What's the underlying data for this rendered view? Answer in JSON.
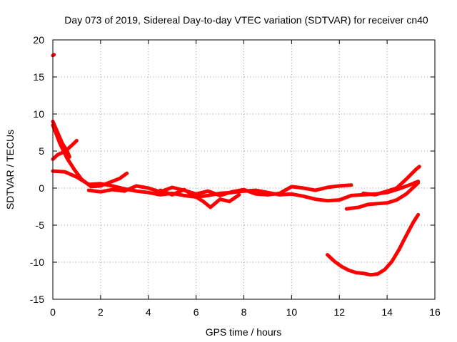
{
  "chart_data": {
    "type": "scatter",
    "title": "Day 073 of 2019, Sidereal Day-to-day VTEC variation (SDTVAR) for receiver cn40",
    "xlabel": "GPS time / hours",
    "ylabel": "SDTVAR / TECUs",
    "xlim": [
      0,
      16
    ],
    "ylim": [
      -15,
      20
    ],
    "xticks": [
      0,
      2,
      4,
      6,
      8,
      10,
      12,
      14,
      16
    ],
    "yticks": [
      -15,
      -10,
      -5,
      0,
      5,
      10,
      15,
      20
    ],
    "xtick_labels": [
      "0",
      "2",
      "4",
      "6",
      "8",
      "10",
      "12",
      "14",
      "16"
    ],
    "ytick_labels": [
      "-15",
      "-10",
      "-5",
      "0",
      "5",
      "10",
      "15",
      "20"
    ],
    "grid": true,
    "color": "#ff0000",
    "series": [
      {
        "name": "s1",
        "x": [
          0.0,
          0.05
        ],
        "y": [
          17.9,
          18.0
        ]
      },
      {
        "name": "s2",
        "x": [
          0.0,
          0.2,
          0.4,
          0.6,
          0.8,
          1.0
        ],
        "y": [
          3.9,
          4.5,
          4.8,
          5.2,
          5.8,
          6.4
        ]
      },
      {
        "name": "s3",
        "x": [
          0.0,
          0.2,
          0.4,
          0.6,
          0.7
        ],
        "y": [
          9.0,
          7.5,
          6.0,
          5.0,
          4.2
        ]
      },
      {
        "name": "s4",
        "x": [
          0.0,
          0.3,
          0.6,
          0.9,
          1.2,
          1.6,
          2.0,
          2.4,
          2.8,
          3.1
        ],
        "y": [
          8.5,
          6.0,
          4.0,
          2.5,
          1.2,
          0.2,
          0.3,
          0.8,
          1.3,
          2.0
        ]
      },
      {
        "name": "s5",
        "x": [
          0.0,
          0.5,
          1.0,
          1.5,
          2.0,
          2.5,
          3.0,
          3.5,
          4.0,
          4.5,
          5.0,
          5.5,
          6.0,
          6.5,
          7.0,
          7.5,
          8.0,
          8.5,
          9.0,
          9.5,
          10.0,
          10.5,
          11.0,
          11.5,
          12.0,
          12.5,
          13.0,
          13.5,
          14.0,
          14.5,
          15.0,
          15.3
        ],
        "y": [
          2.3,
          2.2,
          1.5,
          0.5,
          0.6,
          0.3,
          -0.1,
          -0.4,
          -0.6,
          -0.9,
          -0.7,
          -1.0,
          -1.2,
          -1.0,
          -0.7,
          -0.6,
          -0.4,
          -0.3,
          -0.6,
          -0.9,
          -0.8,
          -1.1,
          -1.5,
          -1.7,
          -1.6,
          -1.0,
          -0.9,
          -0.8,
          -0.6,
          -0.1,
          0.5,
          0.9
        ]
      },
      {
        "name": "s6",
        "x": [
          1.5,
          2.0,
          2.5,
          3.0,
          3.5,
          4.0,
          4.5,
          5.0,
          5.5,
          6.0,
          6.5,
          7.0,
          7.5,
          8.0,
          8.5,
          9.0,
          9.5,
          10.0,
          10.5,
          11.0,
          11.5,
          12.0,
          12.5
        ],
        "y": [
          -0.3,
          -0.5,
          -0.2,
          -0.4,
          0.3,
          0.0,
          -0.5,
          0.1,
          -0.3,
          -0.8,
          -0.4,
          -1.0,
          -0.5,
          -0.2,
          -0.8,
          -0.9,
          -0.7,
          0.2,
          0.0,
          -0.3,
          0.1,
          0.3,
          0.4
        ]
      },
      {
        "name": "s7",
        "x": [
          4.5,
          5.0,
          5.5,
          6.0,
          6.3,
          6.6,
          7.0,
          7.4,
          7.8
        ],
        "y": [
          -0.3,
          -0.9,
          -0.2,
          -1.2,
          -1.8,
          -2.6,
          -1.5,
          -1.8,
          -0.9
        ]
      },
      {
        "name": "s8",
        "x": [
          12.3,
          12.8,
          13.2,
          13.6,
          14.0,
          14.4,
          14.8,
          15.3
        ],
        "y": [
          -2.8,
          -2.6,
          -2.2,
          -2.1,
          -2.0,
          -1.6,
          -0.8,
          0.7
        ]
      },
      {
        "name": "s9",
        "x": [
          13.0,
          13.5,
          14.0,
          14.4,
          14.8,
          15.2,
          15.35
        ],
        "y": [
          -0.7,
          -0.9,
          -0.4,
          0.0,
          1.2,
          2.5,
          2.9
        ]
      },
      {
        "name": "s10",
        "x": [
          11.5,
          11.8,
          12.1,
          12.4,
          12.7,
          13.0,
          13.3,
          13.6,
          13.9,
          14.2,
          14.5,
          14.8,
          15.1,
          15.3
        ],
        "y": [
          -9.0,
          -9.9,
          -10.6,
          -11.1,
          -11.4,
          -11.5,
          -11.7,
          -11.6,
          -11.0,
          -9.9,
          -8.3,
          -6.4,
          -4.6,
          -3.6
        ]
      }
    ]
  }
}
